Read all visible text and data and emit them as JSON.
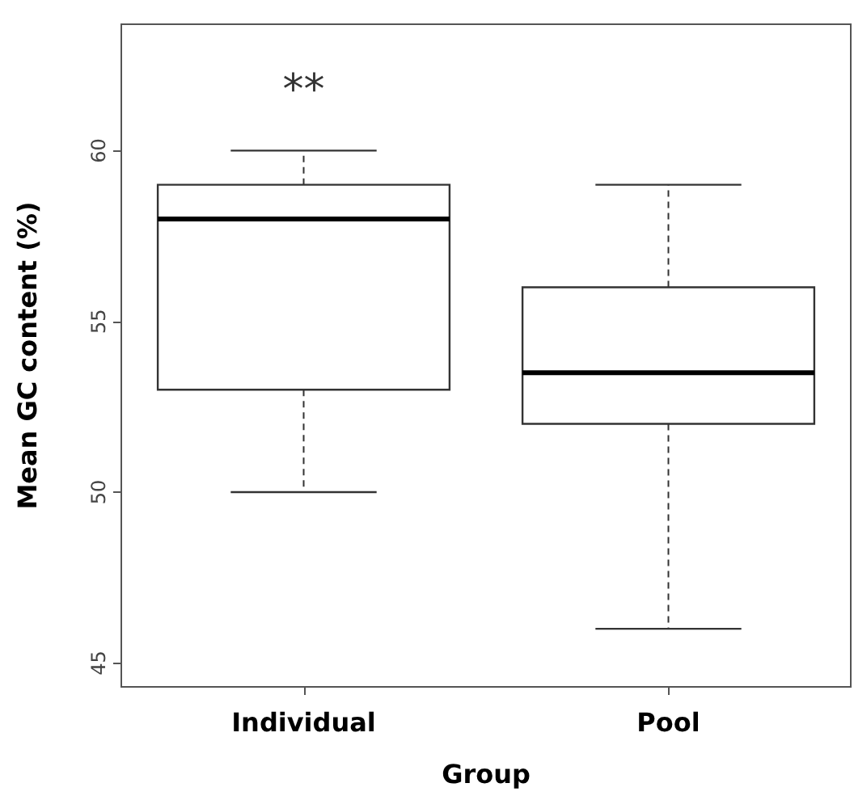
{
  "chart_data": {
    "type": "box",
    "xlabel": "Group",
    "ylabel": "Mean GC content (%)",
    "categories": [
      "Individual",
      "Pool"
    ],
    "boxes": [
      {
        "low": 50,
        "q1": 53,
        "median": 58,
        "q3": 59,
        "high": 60
      },
      {
        "low": 46,
        "q1": 52,
        "median": 53.5,
        "q3": 56,
        "high": 59
      }
    ],
    "ylim": [
      44.3,
      63.7
    ],
    "yticks": [
      45,
      50,
      55,
      60
    ],
    "grid": false,
    "annotations": [
      "**"
    ]
  }
}
